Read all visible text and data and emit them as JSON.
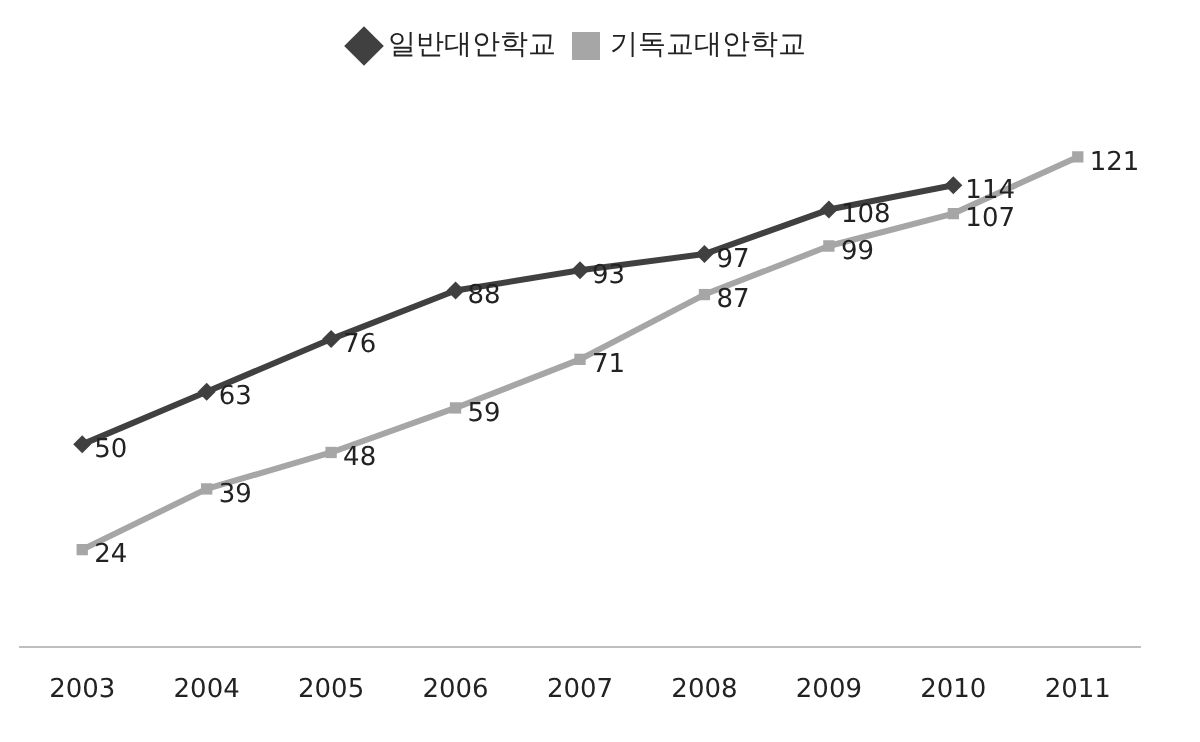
{
  "chart_data": {
    "type": "line",
    "categories": [
      "2003",
      "2004",
      "2005",
      "2006",
      "2007",
      "2008",
      "2009",
      "2010",
      "2011"
    ],
    "series": [
      {
        "name": "일반대안학교",
        "color": "#404040",
        "marker": "diamond",
        "values": [
          50,
          63,
          76,
          88,
          93,
          97,
          108,
          114,
          null
        ]
      },
      {
        "name": "기독교대안학교",
        "color": "#a6a6a6",
        "marker": "square",
        "values": [
          24,
          39,
          48,
          59,
          71,
          87,
          99,
          107,
          121
        ]
      }
    ],
    "data_labels": true,
    "legend": "top",
    "grid": false
  }
}
